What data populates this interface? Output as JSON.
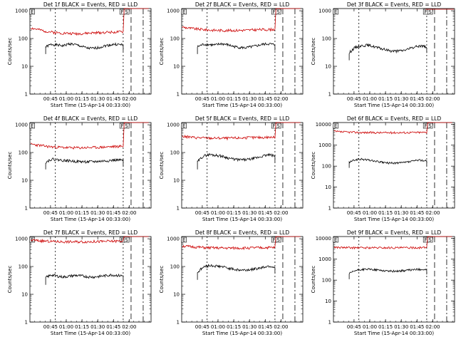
{
  "figure": {
    "ylabel": "Counts/sec",
    "xlabel": "Start Time (15-Apr-14 00:33:00)",
    "xticks": [
      "00:45",
      "01:00",
      "01:15",
      "01:30",
      "01:45",
      "02:00"
    ],
    "yticks": [
      "1",
      "10",
      "100",
      "1000",
      "10000"
    ]
  },
  "chart_data": [
    {
      "type": "line",
      "title": "Det 1f BLACK = Events, RED = LLD",
      "ylim": [
        1,
        1200
      ],
      "flags": [
        "E",
        "F",
        "S"
      ],
      "series": [
        {
          "color": "#000000",
          "start": 2,
          "end": 95,
          "values": [
            50,
            62,
            58,
            55,
            65,
            60,
            52,
            45,
            44,
            48,
            55,
            60,
            62,
            58
          ]
        },
        {
          "color": "#cc0000",
          "start": 0,
          "end": 95,
          "values": [
            240,
            210,
            185,
            170,
            160,
            155,
            150,
            150,
            155,
            160,
            165,
            170,
            170,
            175
          ]
        }
      ]
    },
    {
      "type": "line",
      "title": "Det 2f BLACK = Events, RED = LLD",
      "ylim": [
        1,
        1200
      ],
      "flags": [
        "E",
        "F",
        "S"
      ],
      "series": [
        {
          "color": "#000000",
          "start": 2,
          "end": 95,
          "values": [
            50,
            62,
            60,
            58,
            65,
            60,
            52,
            48,
            46,
            50,
            55,
            62,
            64,
            60
          ]
        },
        {
          "color": "#cc0000",
          "start": 0,
          "end": 95,
          "values": [
            260,
            235,
            220,
            210,
            200,
            198,
            195,
            195,
            198,
            200,
            205,
            210,
            210,
            215
          ]
        }
      ]
    },
    {
      "type": "line",
      "title": "Det 3f BLACK = Events, RED = LLD",
      "ylim": [
        1,
        1200
      ],
      "flags": [
        "E",
        "F",
        "S"
      ],
      "series": [
        {
          "color": "#000000",
          "start": 2,
          "end": 95,
          "values": [
            30,
            48,
            55,
            58,
            52,
            45,
            40,
            36,
            35,
            37,
            42,
            50,
            55,
            50
          ]
        },
        {
          "color": "#cc0000",
          "start": 0,
          "end": 95,
          "values": []
        }
      ]
    },
    {
      "type": "line",
      "title": "Det 4f BLACK = Events, RED = LLD",
      "ylim": [
        1,
        1200
      ],
      "flags": [
        "E",
        "F",
        "S"
      ],
      "series": [
        {
          "color": "#000000",
          "start": 2,
          "end": 95,
          "values": [
            45,
            58,
            55,
            52,
            50,
            48,
            47,
            46,
            47,
            48,
            50,
            52,
            54,
            52
          ]
        },
        {
          "color": "#cc0000",
          "start": 0,
          "end": 95,
          "values": [
            200,
            185,
            170,
            160,
            155,
            150,
            148,
            148,
            150,
            152,
            155,
            160,
            165,
            170
          ]
        }
      ]
    },
    {
      "type": "line",
      "title": "Det 5f BLACK = Events, RED = LLD",
      "ylim": [
        1,
        1200
      ],
      "flags": [
        "E",
        "F",
        "S"
      ],
      "series": [
        {
          "color": "#000000",
          "start": 2,
          "end": 95,
          "values": [
            45,
            75,
            85,
            80,
            75,
            65,
            58,
            55,
            55,
            58,
            65,
            75,
            82,
            75
          ]
        },
        {
          "color": "#cc0000",
          "start": 0,
          "end": 95,
          "values": [
            380,
            360,
            345,
            335,
            330,
            330,
            328,
            330,
            335,
            340,
            345,
            350,
            355,
            350
          ]
        }
      ]
    },
    {
      "type": "line",
      "title": "Det 6f BLACK = Events, RED = LLD",
      "ylim": [
        1,
        12000
      ],
      "flags": [
        "E",
        "F",
        "S"
      ],
      "series": [
        {
          "color": "#000000",
          "start": 2,
          "end": 95,
          "values": [
            150,
            200,
            215,
            200,
            180,
            160,
            145,
            140,
            140,
            145,
            160,
            180,
            195,
            175
          ]
        },
        {
          "color": "#cc0000",
          "start": 0,
          "end": 95,
          "values": [
            4500,
            4300,
            4200,
            4100,
            4000,
            4000,
            3950,
            3950,
            3950,
            4000,
            4000,
            4050,
            4050,
            4100
          ]
        }
      ]
    },
    {
      "type": "line",
      "title": "Det 7f BLACK = Events, RED = LLD",
      "ylim": [
        1,
        1200
      ],
      "flags": [
        "E",
        "F",
        "S"
      ],
      "series": [
        {
          "color": "#000000",
          "start": 2,
          "end": 95,
          "values": [
            40,
            50,
            45,
            42,
            45,
            48,
            46,
            43,
            42,
            44,
            47,
            50,
            48,
            46
          ]
        },
        {
          "color": "#cc0000",
          "start": 0,
          "end": 95,
          "values": [
            900,
            860,
            820,
            800,
            790,
            780,
            780,
            780,
            785,
            790,
            800,
            810,
            820,
            830
          ]
        }
      ]
    },
    {
      "type": "line",
      "title": "Det 8f BLACK = Events, RED = LLD",
      "ylim": [
        1,
        1200
      ],
      "flags": [
        "E",
        "F",
        "S"
      ],
      "series": [
        {
          "color": "#000000",
          "start": 2,
          "end": 95,
          "values": [
            60,
            95,
            110,
            105,
            100,
            90,
            80,
            75,
            75,
            78,
            85,
            95,
            105,
            95
          ]
        },
        {
          "color": "#cc0000",
          "start": 0,
          "end": 95,
          "values": [
            550,
            520,
            500,
            480,
            470,
            465,
            460,
            460,
            462,
            465,
            470,
            475,
            480,
            480
          ]
        }
      ]
    },
    {
      "type": "line",
      "title": "Det 9f BLACK = Events, RED = LLD",
      "ylim": [
        1,
        12000
      ],
      "flags": [
        "E",
        "F",
        "S"
      ],
      "series": [
        {
          "color": "#000000",
          "start": 2,
          "end": 95,
          "values": [
            200,
            280,
            320,
            330,
            320,
            300,
            280,
            270,
            270,
            280,
            300,
            320,
            330,
            310
          ]
        },
        {
          "color": "#cc0000",
          "start": 0,
          "end": 95,
          "values": [
            3700,
            3600,
            3550,
            3500,
            3500,
            3500,
            3500,
            3500,
            3500,
            3500,
            3500,
            3550,
            3550,
            3600
          ]
        }
      ]
    }
  ]
}
